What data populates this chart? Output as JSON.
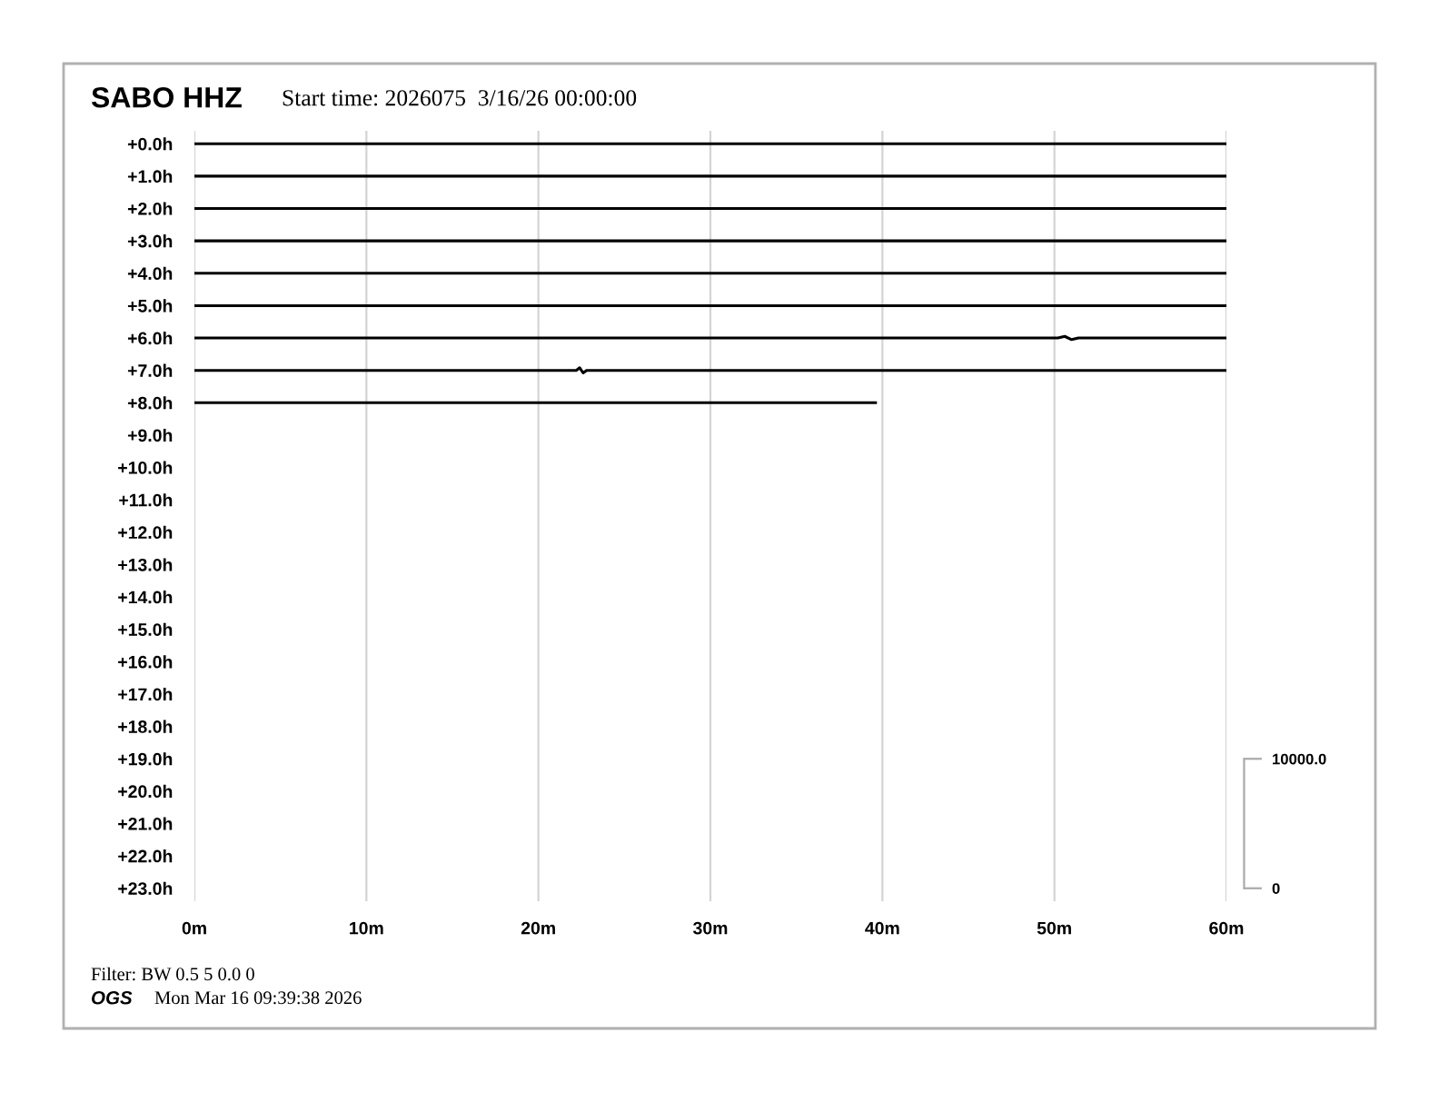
{
  "chart_data": {
    "type": "line",
    "title": "SABO HHZ",
    "subtitle": "Start time: 2026075  3/16/26 00:00:00",
    "annotations": [
      "Filter: BW 0.5 5 0.0 0",
      "OGS",
      "Mon Mar 16 09:39:38 2026"
    ],
    "xlim": [
      0,
      60
    ],
    "xticks": [
      {
        "value": 0,
        "label": "0m"
      },
      {
        "value": 10,
        "label": "10m"
      },
      {
        "value": 20,
        "label": "20m"
      },
      {
        "value": 30,
        "label": "30m"
      },
      {
        "value": 40,
        "label": "40m"
      },
      {
        "value": 50,
        "label": "50m"
      },
      {
        "value": 60,
        "label": "60m"
      }
    ],
    "ylim": [
      23.4,
      -0.4
    ],
    "yticks": [
      {
        "value": 0,
        "label": "+0.0h"
      },
      {
        "value": 1,
        "label": "+1.0h"
      },
      {
        "value": 2,
        "label": "+2.0h"
      },
      {
        "value": 3,
        "label": "+3.0h"
      },
      {
        "value": 4,
        "label": "+4.0h"
      },
      {
        "value": 5,
        "label": "+5.0h"
      },
      {
        "value": 6,
        "label": "+6.0h"
      },
      {
        "value": 7,
        "label": "+7.0h"
      },
      {
        "value": 8,
        "label": "+8.0h"
      },
      {
        "value": 9,
        "label": "+9.0h"
      },
      {
        "value": 10,
        "label": "+10.0h"
      },
      {
        "value": 11,
        "label": "+11.0h"
      },
      {
        "value": 12,
        "label": "+12.0h"
      },
      {
        "value": 13,
        "label": "+13.0h"
      },
      {
        "value": 14,
        "label": "+14.0h"
      },
      {
        "value": 15,
        "label": "+15.0h"
      },
      {
        "value": 16,
        "label": "+16.0h"
      },
      {
        "value": 17,
        "label": "+17.0h"
      },
      {
        "value": 18,
        "label": "+18.0h"
      },
      {
        "value": 19,
        "label": "+19.0h"
      },
      {
        "value": 20,
        "label": "+20.0h"
      },
      {
        "value": 21,
        "label": "+21.0h"
      },
      {
        "value": 22,
        "label": "+22.0h"
      },
      {
        "value": 23,
        "label": "+23.0h"
      }
    ],
    "y2lim": [
      -1000,
      58500
    ],
    "y2ticks": [
      0,
      {
        "value": 10000,
        "label": "10000.0"
      }
    ],
    "grid": "x",
    "series": [
      {
        "color": "#000000",
        "x": [
          0,
          60
        ],
        "values": [
          0,
          0
        ]
      },
      {
        "color": "#000000",
        "x": [
          0,
          60
        ],
        "values": [
          1,
          1
        ]
      },
      {
        "color": "#000000",
        "x": [
          0,
          60
        ],
        "values": [
          2,
          2
        ]
      },
      {
        "color": "#000000",
        "x": [
          0,
          60
        ],
        "values": [
          3,
          3
        ]
      },
      {
        "color": "#000000",
        "x": [
          0,
          60
        ],
        "values": [
          4,
          4
        ]
      },
      {
        "color": "#000000",
        "x": [
          0,
          60
        ],
        "values": [
          5,
          5
        ]
      },
      {
        "color": "#000000",
        "x": [
          0,
          50.2,
          50.6,
          51.0,
          51.4,
          60
        ],
        "values": [
          6,
          6,
          5.95,
          6.05,
          6,
          6
        ]
      },
      {
        "color": "#000000",
        "x": [
          0,
          22.2,
          22.4,
          22.6,
          22.8,
          60
        ],
        "values": [
          7,
          7,
          6.92,
          7.08,
          7,
          7
        ]
      },
      {
        "color": "#000000",
        "x": [
          0,
          39.6
        ],
        "values": [
          8,
          8
        ]
      }
    ]
  }
}
